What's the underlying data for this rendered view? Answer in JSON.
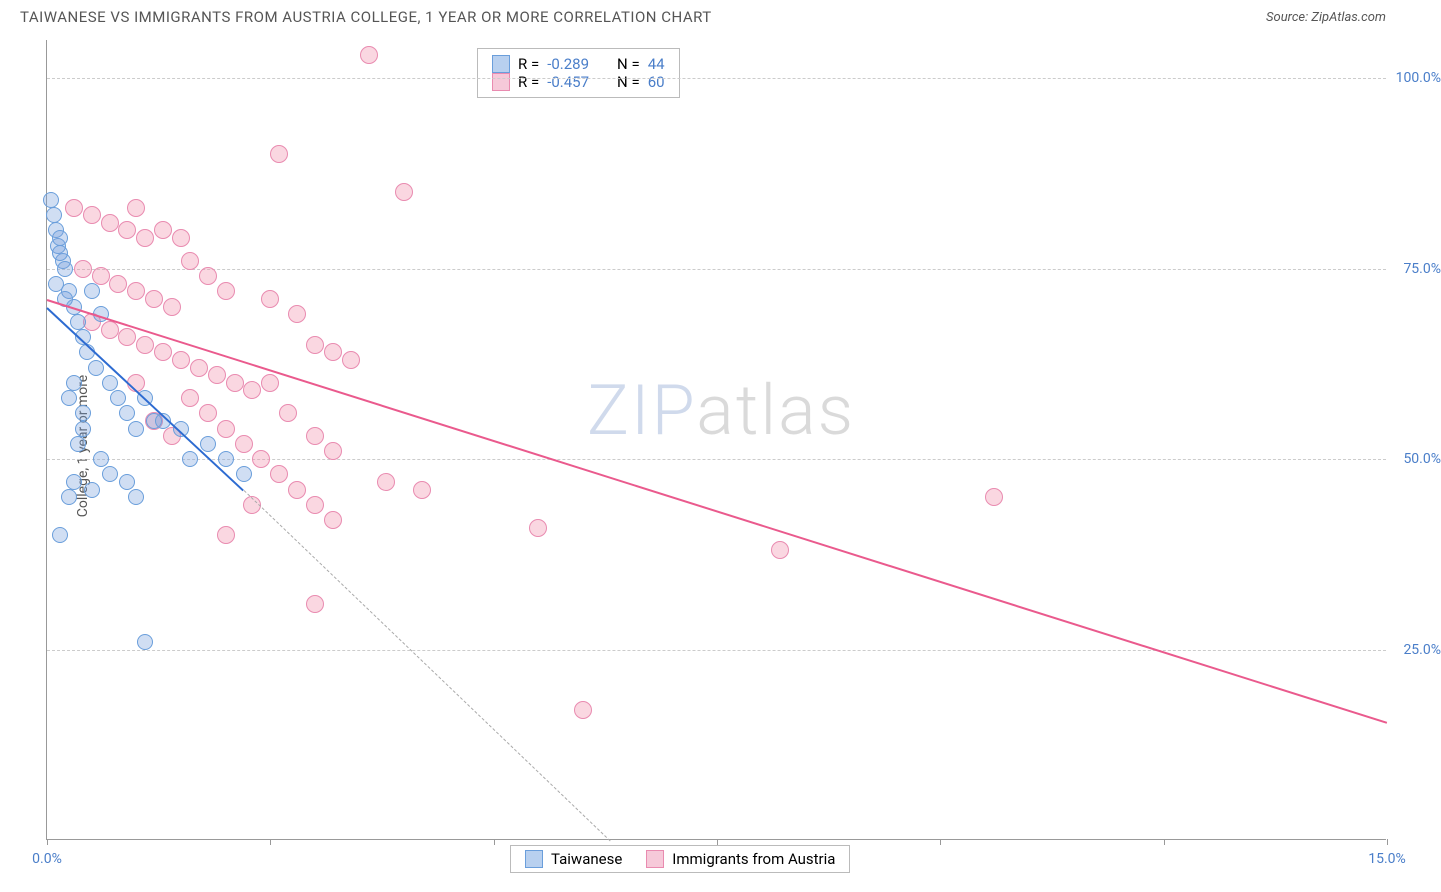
{
  "header": {
    "title": "TAIWANESE VS IMMIGRANTS FROM AUSTRIA COLLEGE, 1 YEAR OR MORE CORRELATION CHART",
    "source": "Source: ZipAtlas.com"
  },
  "axes": {
    "y_label": "College, 1 year or more",
    "x_min": 0.0,
    "x_max": 15.0,
    "y_min": 0.0,
    "y_max": 105.0,
    "y_ticks": [
      25.0,
      50.0,
      75.0,
      100.0
    ],
    "y_tick_labels": [
      "25.0%",
      "50.0%",
      "75.0%",
      "100.0%"
    ],
    "x_ticks": [
      0.0,
      2.5,
      5.0,
      7.5,
      10.0,
      12.5,
      15.0
    ],
    "x_tick_labels_shown": {
      "0": "0.0%",
      "6": "15.0%"
    },
    "grid_color": "#cccccc"
  },
  "series": {
    "taiwanese": {
      "label": "Taiwanese",
      "color_fill": "rgba(120,160,220,0.35)",
      "color_stroke": "#6a9edb",
      "swatch_fill": "#b8d0ef",
      "swatch_stroke": "#6a9edb",
      "r_value": "-0.289",
      "n_value": "44",
      "trend": {
        "x1": 0.0,
        "y1": 70.0,
        "x2": 2.2,
        "y2": 46.0,
        "color": "#2d6bd1",
        "width": 2
      },
      "trend_extrap": {
        "x1": 2.2,
        "y1": 46.0,
        "x2": 6.3,
        "y2": 0.0
      },
      "point_radius": 8,
      "points": [
        [
          0.05,
          84
        ],
        [
          0.08,
          82
        ],
        [
          0.1,
          80
        ],
        [
          0.12,
          78
        ],
        [
          0.15,
          79
        ],
        [
          0.18,
          76
        ],
        [
          0.2,
          75
        ],
        [
          0.1,
          73
        ],
        [
          0.25,
          72
        ],
        [
          0.3,
          70
        ],
        [
          0.15,
          77
        ],
        [
          0.35,
          68
        ],
        [
          0.4,
          66
        ],
        [
          0.2,
          71
        ],
        [
          0.5,
          72
        ],
        [
          0.6,
          69
        ],
        [
          0.45,
          64
        ],
        [
          0.55,
          62
        ],
        [
          0.3,
          60
        ],
        [
          0.25,
          58
        ],
        [
          0.7,
          60
        ],
        [
          0.8,
          58
        ],
        [
          0.9,
          56
        ],
        [
          1.0,
          54
        ],
        [
          1.1,
          58
        ],
        [
          1.2,
          55
        ],
        [
          0.4,
          54
        ],
        [
          0.35,
          52
        ],
        [
          0.6,
          50
        ],
        [
          0.7,
          48
        ],
        [
          0.9,
          47
        ],
        [
          1.0,
          45
        ],
        [
          0.3,
          47
        ],
        [
          0.25,
          45
        ],
        [
          0.5,
          46
        ],
        [
          0.15,
          40
        ],
        [
          1.3,
          55
        ],
        [
          1.5,
          54
        ],
        [
          1.6,
          50
        ],
        [
          1.8,
          52
        ],
        [
          2.0,
          50
        ],
        [
          2.2,
          48
        ],
        [
          1.1,
          26
        ],
        [
          0.4,
          56
        ]
      ]
    },
    "austria": {
      "label": "Immigrants from Austria",
      "color_fill": "rgba(240,140,170,0.35)",
      "color_stroke": "#e98bb0",
      "swatch_fill": "#f6c9d9",
      "swatch_stroke": "#e98bb0",
      "r_value": "-0.457",
      "n_value": "60",
      "trend": {
        "x1": 0.0,
        "y1": 71.0,
        "x2": 15.0,
        "y2": 15.5,
        "color": "#ea5a8d",
        "width": 2
      },
      "point_radius": 9,
      "points": [
        [
          0.3,
          83
        ],
        [
          0.5,
          82
        ],
        [
          0.7,
          81
        ],
        [
          0.9,
          80
        ],
        [
          1.0,
          83
        ],
        [
          1.1,
          79
        ],
        [
          1.3,
          80
        ],
        [
          1.5,
          79
        ],
        [
          0.4,
          75
        ],
        [
          0.6,
          74
        ],
        [
          0.8,
          73
        ],
        [
          1.0,
          72
        ],
        [
          1.2,
          71
        ],
        [
          1.4,
          70
        ],
        [
          1.6,
          76
        ],
        [
          1.8,
          74
        ],
        [
          2.0,
          72
        ],
        [
          0.5,
          68
        ],
        [
          0.7,
          67
        ],
        [
          0.9,
          66
        ],
        [
          1.1,
          65
        ],
        [
          1.3,
          64
        ],
        [
          1.5,
          63
        ],
        [
          1.7,
          62
        ],
        [
          1.9,
          61
        ],
        [
          2.1,
          60
        ],
        [
          2.3,
          59
        ],
        [
          2.5,
          71
        ],
        [
          2.8,
          69
        ],
        [
          3.0,
          65
        ],
        [
          3.2,
          64
        ],
        [
          3.4,
          63
        ],
        [
          3.6,
          103
        ],
        [
          2.6,
          90
        ],
        [
          4.0,
          85
        ],
        [
          1.6,
          58
        ],
        [
          1.8,
          56
        ],
        [
          2.0,
          54
        ],
        [
          2.2,
          52
        ],
        [
          2.4,
          50
        ],
        [
          2.6,
          48
        ],
        [
          2.8,
          46
        ],
        [
          3.0,
          44
        ],
        [
          3.2,
          42
        ],
        [
          3.8,
          47
        ],
        [
          4.2,
          46
        ],
        [
          2.5,
          60
        ],
        [
          2.7,
          56
        ],
        [
          3.0,
          53
        ],
        [
          3.2,
          51
        ],
        [
          2.3,
          44
        ],
        [
          2.0,
          40
        ],
        [
          3.0,
          31
        ],
        [
          5.5,
          41
        ],
        [
          6.0,
          17
        ],
        [
          8.2,
          38
        ],
        [
          10.6,
          45
        ],
        [
          1.2,
          55
        ],
        [
          1.4,
          53
        ],
        [
          1.0,
          60
        ]
      ]
    }
  },
  "correlation_box": {
    "r_label": "R =",
    "n_label": "N =",
    "value_color": "#4a7ec9"
  },
  "legend": {
    "position": "bottom-center"
  },
  "watermark": {
    "text_prefix": "ZIP",
    "text_suffix": "atlas"
  },
  "chart_bg": "#ffffff",
  "point_style": {
    "stroke_width": 1.5
  }
}
